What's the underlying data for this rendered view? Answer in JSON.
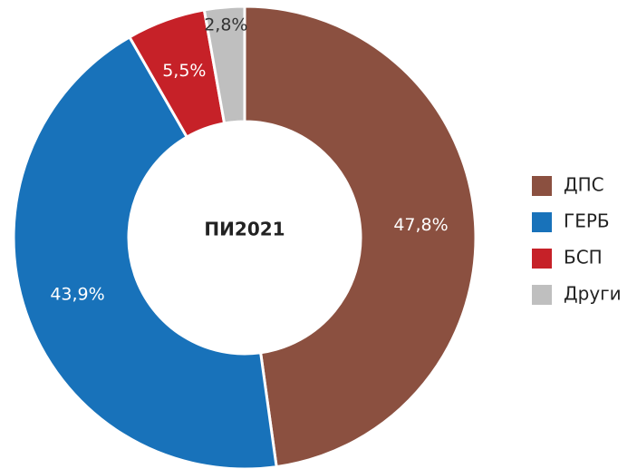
{
  "chart_data": {
    "type": "pie",
    "center_text": "ПИ2021",
    "categories": [
      "ДПС",
      "ГЕРБ",
      "БСП",
      "Други"
    ],
    "values": [
      47.8,
      43.9,
      5.5,
      2.8
    ],
    "value_labels": [
      "47,8%",
      "43,9%",
      "5,5%",
      "2,8%"
    ],
    "colors": [
      "#8b5040",
      "#1872ba",
      "#c62128",
      "#bfbfbf"
    ],
    "legend": "right"
  }
}
